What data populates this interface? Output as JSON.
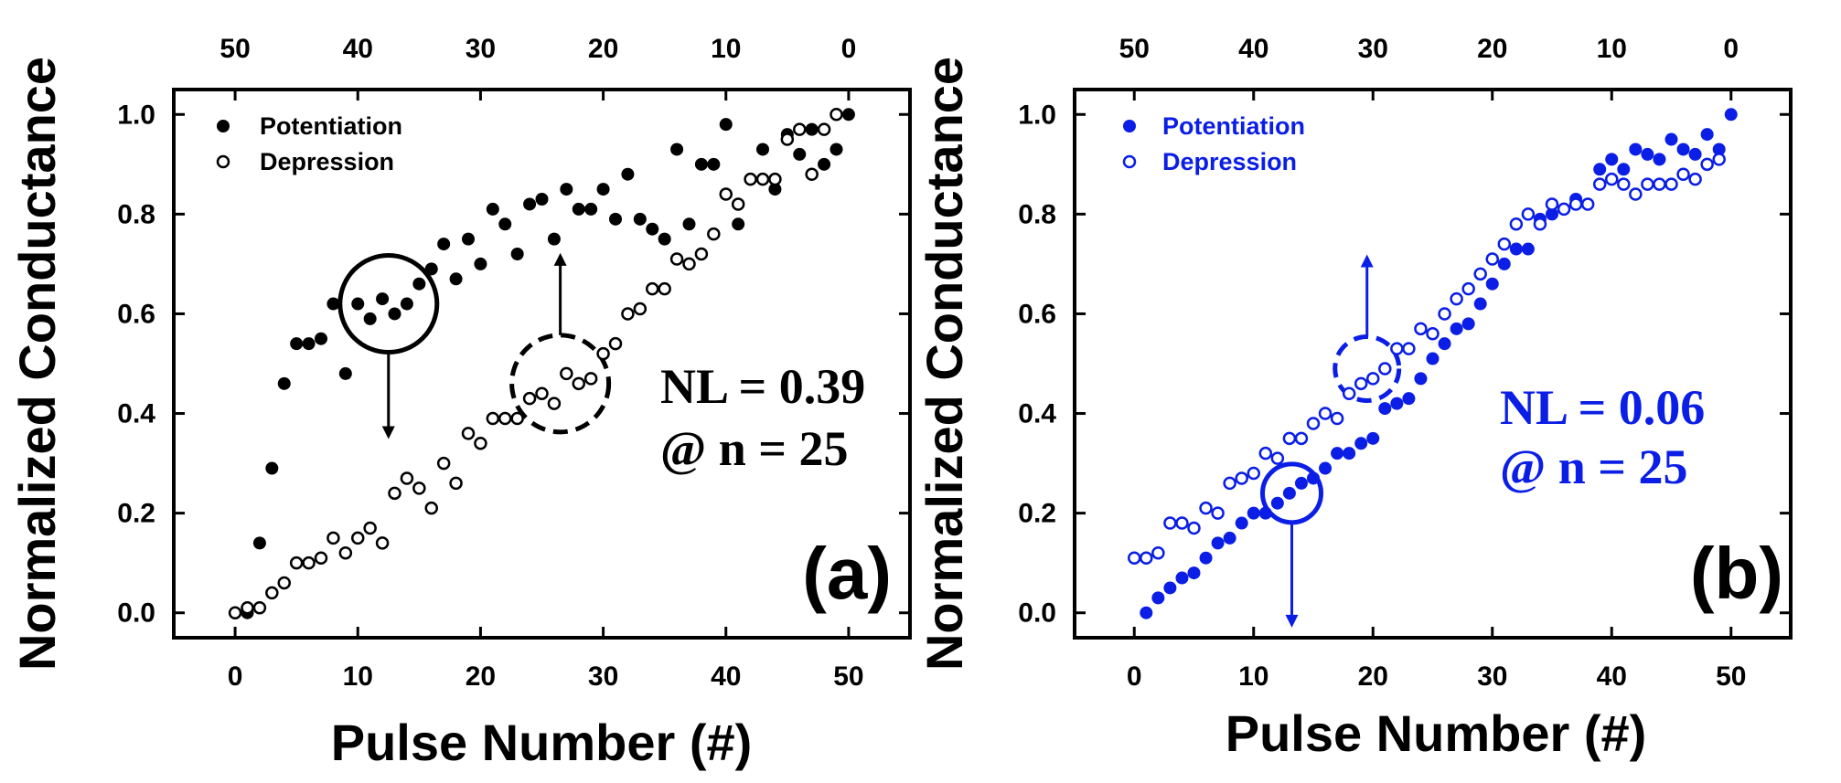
{
  "chart_data": [
    {
      "type": "scatter",
      "panel_label": "(a)",
      "color": "#000000",
      "xlabel": "Pulse Number (#)",
      "ylabel": "Normalized Conductance",
      "xlim": [
        -5,
        55
      ],
      "ylim": [
        -0.05,
        1.05
      ],
      "x_ticks": [
        "0",
        "10",
        "20",
        "30",
        "40",
        "50"
      ],
      "top_ticks": [
        "50",
        "40",
        "30",
        "20",
        "10",
        "0"
      ],
      "y_ticks": [
        "0.0",
        "0.2",
        "0.4",
        "0.6",
        "0.8",
        "1.0"
      ],
      "annotation": [
        "NL = 0.39",
        "@ n = 25"
      ],
      "legend_position": "top-left",
      "series": [
        {
          "name": "Potentiation",
          "marker": "filled-circle",
          "x": [
            1,
            2,
            3,
            4,
            5,
            6,
            7,
            8,
            9,
            10,
            11,
            12,
            13,
            14,
            15,
            16,
            17,
            18,
            19,
            20,
            21,
            22,
            23,
            24,
            25,
            26,
            27,
            28,
            29,
            30,
            31,
            32,
            33,
            34,
            35,
            36,
            37,
            38,
            39,
            40,
            41,
            42,
            43,
            44,
            45,
            46,
            47,
            48,
            49,
            50
          ],
          "y": [
            0.0,
            0.14,
            0.29,
            0.46,
            0.54,
            0.54,
            0.55,
            0.62,
            0.48,
            0.62,
            0.59,
            0.63,
            0.6,
            0.62,
            0.66,
            0.69,
            0.74,
            0.67,
            0.75,
            0.7,
            0.81,
            0.78,
            0.72,
            0.82,
            0.83,
            0.75,
            0.85,
            0.81,
            0.81,
            0.85,
            0.79,
            0.88,
            0.79,
            0.77,
            0.75,
            0.93,
            0.78,
            0.9,
            0.9,
            0.98,
            0.78,
            0.87,
            0.93,
            0.85,
            0.96,
            0.92,
            0.97,
            0.9,
            0.93,
            1.0
          ]
        },
        {
          "name": "Depression",
          "marker": "open-circle",
          "x": [
            0,
            1,
            2,
            3,
            4,
            5,
            6,
            7,
            8,
            9,
            10,
            11,
            12,
            13,
            14,
            15,
            16,
            17,
            18,
            19,
            20,
            21,
            22,
            23,
            24,
            25,
            26,
            27,
            28,
            29,
            30,
            31,
            32,
            33,
            34,
            35,
            36,
            37,
            38,
            39,
            40,
            41,
            42,
            43,
            44,
            45,
            46,
            47,
            48,
            49
          ],
          "y": [
            0.0,
            0.01,
            0.01,
            0.04,
            0.06,
            0.1,
            0.1,
            0.11,
            0.15,
            0.12,
            0.15,
            0.17,
            0.14,
            0.24,
            0.27,
            0.25,
            0.21,
            0.3,
            0.26,
            0.36,
            0.34,
            0.39,
            0.39,
            0.39,
            0.43,
            0.44,
            0.42,
            0.48,
            0.46,
            0.47,
            0.52,
            0.54,
            0.6,
            0.61,
            0.65,
            0.65,
            0.71,
            0.7,
            0.72,
            0.76,
            0.84,
            0.82,
            0.87,
            0.87,
            0.87,
            0.95,
            0.97,
            0.88,
            0.97,
            1.0
          ]
        }
      ]
    },
    {
      "type": "scatter",
      "panel_label": "(b)",
      "color": "#0a1ee6",
      "xlabel": "Pulse Number (#)",
      "ylabel": "Normalized Conductance",
      "xlim": [
        -5,
        55
      ],
      "ylim": [
        -0.05,
        1.05
      ],
      "x_ticks": [
        "0",
        "10",
        "20",
        "30",
        "40",
        "50"
      ],
      "top_ticks": [
        "50",
        "40",
        "30",
        "20",
        "10",
        "0"
      ],
      "y_ticks": [
        "0.0",
        "0.2",
        "0.4",
        "0.6",
        "0.8",
        "1.0"
      ],
      "annotation": [
        "NL = 0.06",
        "@ n = 25"
      ],
      "legend_position": "top-left",
      "series": [
        {
          "name": "Potentiation",
          "marker": "filled-circle",
          "x": [
            1,
            2,
            3,
            4,
            5,
            6,
            7,
            8,
            9,
            10,
            11,
            12,
            13,
            14,
            15,
            16,
            17,
            18,
            19,
            20,
            21,
            22,
            23,
            24,
            25,
            26,
            27,
            28,
            29,
            30,
            31,
            32,
            33,
            34,
            35,
            36,
            37,
            38,
            39,
            40,
            41,
            42,
            43,
            44,
            45,
            46,
            47,
            48,
            49,
            50
          ],
          "y": [
            0.0,
            0.03,
            0.05,
            0.07,
            0.08,
            0.11,
            0.14,
            0.15,
            0.18,
            0.2,
            0.2,
            0.22,
            0.24,
            0.26,
            0.27,
            0.29,
            0.32,
            0.32,
            0.34,
            0.35,
            0.41,
            0.42,
            0.43,
            0.47,
            0.51,
            0.54,
            0.57,
            0.58,
            0.62,
            0.66,
            0.7,
            0.73,
            0.73,
            0.79,
            0.8,
            0.81,
            0.83,
            0.82,
            0.89,
            0.91,
            0.89,
            0.93,
            0.92,
            0.91,
            0.95,
            0.93,
            0.92,
            0.96,
            0.93,
            1.0
          ]
        },
        {
          "name": "Depression",
          "marker": "open-circle",
          "x": [
            0,
            1,
            2,
            3,
            4,
            5,
            6,
            7,
            8,
            9,
            10,
            11,
            12,
            13,
            14,
            15,
            16,
            17,
            18,
            19,
            20,
            21,
            22,
            23,
            24,
            25,
            26,
            27,
            28,
            29,
            30,
            31,
            32,
            33,
            34,
            35,
            36,
            37,
            38,
            39,
            40,
            41,
            42,
            43,
            44,
            45,
            46,
            47,
            48,
            49
          ],
          "y": [
            0.11,
            0.11,
            0.12,
            0.18,
            0.18,
            0.17,
            0.21,
            0.2,
            0.26,
            0.27,
            0.28,
            0.32,
            0.31,
            0.35,
            0.35,
            0.38,
            0.4,
            0.39,
            0.44,
            0.46,
            0.47,
            0.49,
            0.53,
            0.53,
            0.57,
            0.56,
            0.6,
            0.63,
            0.65,
            0.68,
            0.71,
            0.74,
            0.78,
            0.8,
            0.78,
            0.82,
            0.81,
            0.82,
            0.82,
            0.86,
            0.87,
            0.86,
            0.84,
            0.86,
            0.86,
            0.86,
            0.88,
            0.87,
            0.9,
            0.91
          ]
        }
      ]
    }
  ]
}
